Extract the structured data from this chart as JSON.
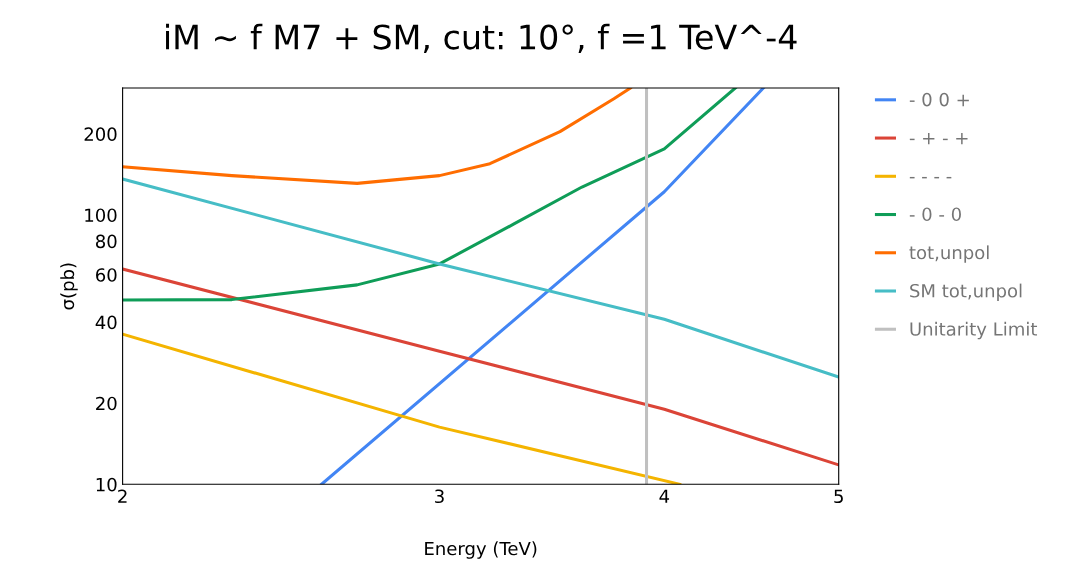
{
  "chart_data": {
    "type": "line",
    "title": "iM ~ f M7 + SM, cut: 10°, f =1 TeV^-4",
    "xlabel": "Energy (TeV)",
    "ylabel": "σ(pb)",
    "log": "xy",
    "xlim": [
      2,
      5
    ],
    "xticks": [
      2,
      3,
      4,
      5
    ],
    "ylim": [
      10,
      296
    ],
    "yticks": [
      10,
      20,
      40,
      60,
      80,
      100,
      200
    ],
    "grid": false,
    "legend": "right",
    "line_style": "solid",
    "marker": "none",
    "series": [
      {
        "name": "- 0 0 +",
        "color": "#4285f4",
        "x": [
          2.58,
          4,
          4.54
        ],
        "values": [
          10,
          122,
          296
        ]
      },
      {
        "name": "- + - +",
        "color": "#db4437",
        "x": [
          2,
          3,
          4,
          5
        ],
        "values": [
          63,
          31.2,
          19,
          11.8
        ]
      },
      {
        "name": "- - - -",
        "color": "#f4b400",
        "x": [
          2,
          3,
          4.08
        ],
        "values": [
          36.1,
          16.3,
          10
        ]
      },
      {
        "name": "- 0 - 0",
        "color": "#0f9d58",
        "x": [
          2,
          2.3,
          2.7,
          3.0,
          3.3,
          3.6,
          4,
          4.38
        ],
        "values": [
          48.3,
          48.5,
          55,
          65.8,
          92.6,
          127,
          176,
          296
        ]
      },
      {
        "name": "tot,unpol",
        "color": "#ff6d00",
        "x": [
          2,
          2.3,
          2.7,
          3.0,
          3.2,
          3.5,
          3.75,
          3.83
        ],
        "values": [
          151,
          140,
          131,
          140,
          155,
          204,
          270,
          296
        ]
      },
      {
        "name": "SM tot,unpol",
        "color": "#46bdc6",
        "x": [
          2,
          3,
          4,
          5
        ],
        "values": [
          136,
          65.8,
          41,
          25
        ]
      },
      {
        "name": "Unitarity Limit",
        "color": "#c0c0c0",
        "x": [
          3.91,
          3.91
        ],
        "values": [
          10,
          296
        ]
      }
    ]
  }
}
